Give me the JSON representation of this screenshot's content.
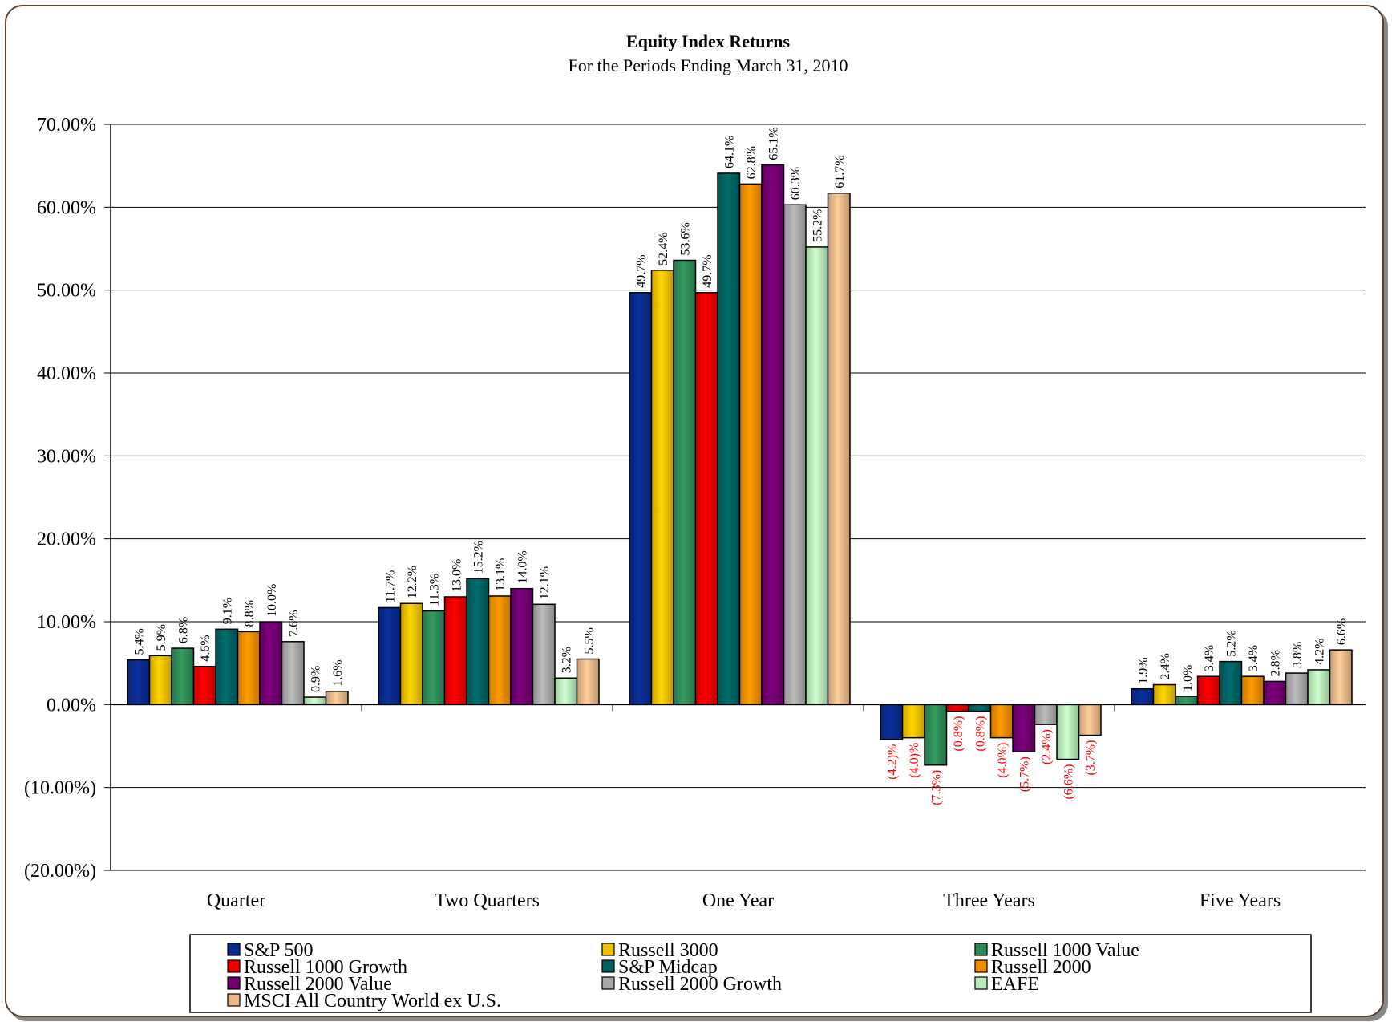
{
  "chart_data": {
    "type": "bar",
    "title": "Equity Index Returns",
    "subtitle": "For the Periods Ending March 31, 2010",
    "categories": [
      "Quarter",
      "Two Quarters",
      "One Year",
      "Three Years",
      "Five Years"
    ],
    "ylim": [
      -20,
      70
    ],
    "yticks": [
      -20,
      -10,
      0,
      10,
      20,
      30,
      40,
      50,
      60,
      70
    ],
    "ytick_labels": [
      "(20.00%)",
      "(10.00%)",
      "0.00%",
      "10.00%",
      "20.00%",
      "30.00%",
      "40.00%",
      "50.00%",
      "60.00%",
      "70.00%"
    ],
    "grid": true,
    "legend_position": "bottom",
    "negative_label_color": "#ff0000",
    "series": [
      {
        "name": "S&P 500",
        "color": "#0a2a8c",
        "values": [
          5.4,
          11.7,
          49.7,
          -4.2,
          1.9
        ],
        "labels": [
          "5.4%",
          "11.7%",
          "49.7%",
          "(4.2)%",
          "1.9%"
        ]
      },
      {
        "name": "Russell 3000",
        "color": "#f0c000",
        "values": [
          5.9,
          12.2,
          52.4,
          -4.0,
          2.4
        ],
        "labels": [
          "5.9%",
          "12.2%",
          "52.4%",
          "(4.0)%",
          "2.4%"
        ]
      },
      {
        "name": "Russell 1000 Value",
        "color": "#2e8b57",
        "values": [
          6.8,
          11.3,
          53.6,
          -7.3,
          1.0
        ],
        "labels": [
          "6.8%",
          "11.3%",
          "53.6%",
          "(7.3%)",
          "1.0%"
        ]
      },
      {
        "name": "Russell 1000 Growth",
        "color": "#ee0000",
        "values": [
          4.6,
          13.0,
          49.7,
          -0.8,
          3.4
        ],
        "labels": [
          "4.6%",
          "13.0%",
          "49.7%",
          "(0.8%)",
          "3.4%"
        ]
      },
      {
        "name": "S&P Midcap",
        "color": "#006060",
        "values": [
          9.1,
          15.2,
          64.1,
          -0.8,
          5.2
        ],
        "labels": [
          "9.1%",
          "15.2%",
          "64.1%",
          "(0.8%)",
          "5.2%"
        ]
      },
      {
        "name": "Russell 2000",
        "color": "#f08c00",
        "values": [
          8.8,
          13.1,
          62.8,
          -4.0,
          3.4
        ],
        "labels": [
          "8.8%",
          "13.1%",
          "62.8%",
          "(4.0%)",
          "3.4%"
        ]
      },
      {
        "name": "Russell 2000 Value",
        "color": "#700070",
        "values": [
          10.0,
          14.0,
          65.1,
          -5.7,
          2.8
        ],
        "labels": [
          "10.0%",
          "14.0%",
          "65.1%",
          "(5.7%)",
          "2.8%"
        ]
      },
      {
        "name": "Russell 2000 Growth",
        "color": "#a8a8a8",
        "values": [
          7.6,
          12.1,
          60.3,
          -2.4,
          3.8
        ],
        "labels": [
          "7.6%",
          "12.1%",
          "60.3%",
          "(2.4%)",
          "3.8%"
        ]
      },
      {
        "name": "EAFE",
        "color": "#b8ecb8",
        "values": [
          0.9,
          3.2,
          55.2,
          -6.6,
          4.2
        ],
        "labels": [
          "0.9%",
          "3.2%",
          "55.2%",
          "(6.6%)",
          "4.2%"
        ]
      },
      {
        "name": "MSCI All Country World ex U.S.",
        "color": "#e8b888",
        "values": [
          1.6,
          5.5,
          61.7,
          -3.7,
          6.6
        ],
        "labels": [
          "1.6%",
          "5.5%",
          "61.7%",
          "(3.7%)",
          "6.6%"
        ]
      }
    ]
  }
}
